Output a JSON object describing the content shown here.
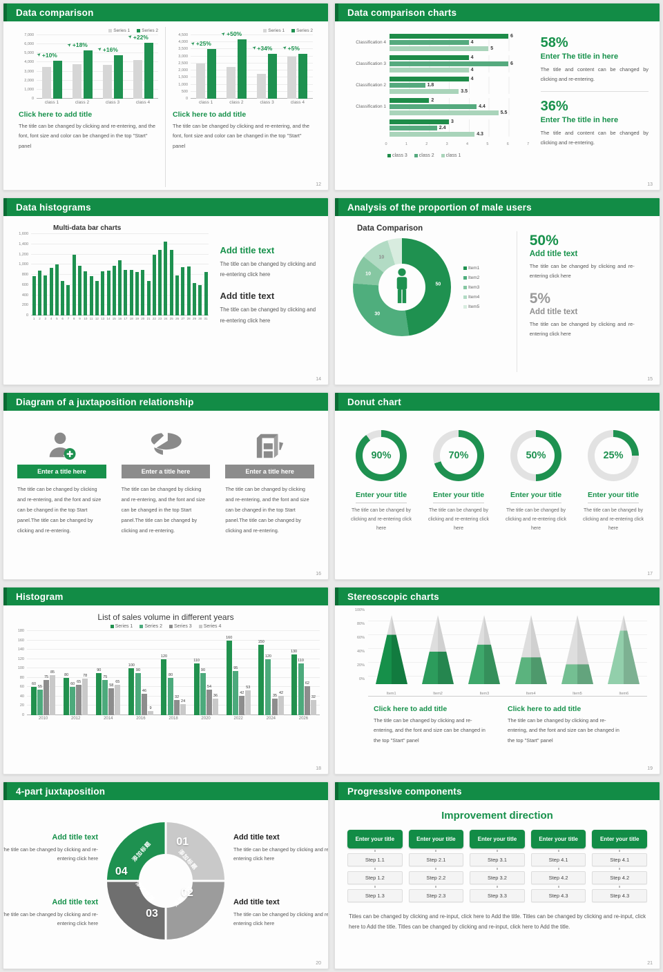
{
  "page": {
    "bg": "#e9e9e9",
    "accent_green": "#128c46",
    "bar_green": "#1e9150",
    "bar_gray": "#d6d6d6"
  },
  "slides": [
    {
      "title": "Data comparison",
      "page_no": "12",
      "panels": [
        {
          "block_title": "Click here to add title",
          "block_body": "The title can be changed by clicking and re-entering, and the font, font size and color can be changed in the top \"Start\" panel"
        },
        {
          "block_title": "Click here to add title",
          "block_body": "The title can be changed by clicking and re-entering, and the font, font size and color can be changed in the top \"Start\" panel"
        }
      ]
    },
    {
      "title": "Data comparison charts",
      "page_no": "13",
      "stats": [
        {
          "pct": "58%",
          "head": "Enter The title in here",
          "body": "The title and content can be changed by clicking and re-entering."
        },
        {
          "pct": "36%",
          "head": "Enter The title in here",
          "body": "The title and content can be changed by clicking and re-entering."
        }
      ]
    },
    {
      "title": "Data histograms",
      "page_no": "14",
      "blocks": [
        {
          "title": "Add title text",
          "body": "The title can be changed by clicking and re-entering click here"
        },
        {
          "title": "Add title text",
          "body": "The title can be changed by clicking and re-entering click here"
        }
      ]
    },
    {
      "title": "Analysis of the proportion of male users",
      "page_no": "15",
      "stats": [
        {
          "pct": "50%",
          "title": "Add title text",
          "body": "The title can be changed by clicking and re-entering click here"
        },
        {
          "pct": "5%",
          "title": "Add title text",
          "body": "The title can be changed by clicking and re-entering click here"
        }
      ]
    },
    {
      "title": "Diagram of a juxtaposition relationship",
      "page_no": "16",
      "columns": [
        {
          "icon": "person-add-icon",
          "title": "Enter a title here",
          "body": "The title can be changed by clicking and re-entering, and the font and size can be changed in the top Start panel.The title can be changed by clicking and re-entering."
        },
        {
          "icon": "pie-3d-icon",
          "title": "Enter a title here",
          "body": "The title can be changed by clicking and re-entering, and the font and size can be changed in the top Start panel.The title can be changed by clicking and re-entering."
        },
        {
          "icon": "building-icon",
          "title": "Enter a title here",
          "body": "The title can be changed by clicking and re-entering, and the font and size can be changed in the top Start panel.The title can be changed by clicking and re-entering."
        }
      ]
    },
    {
      "title": "Donut chart",
      "page_no": "17",
      "donuts": [
        {
          "pct": 90,
          "label": "90%",
          "title": "Enter your title",
          "body": "The title can be changed by clicking and re-entering click here"
        },
        {
          "pct": 70,
          "label": "70%",
          "title": "Enter your title",
          "body": "The title can be changed by clicking and re-entering click here"
        },
        {
          "pct": 50,
          "label": "50%",
          "title": "Enter your title",
          "body": "The title can be changed by clicking and re-entering click here"
        },
        {
          "pct": 25,
          "label": "25%",
          "title": "Enter your title",
          "body": "The title can be changed by clicking and re-entering click here"
        }
      ]
    },
    {
      "title": "Histogram",
      "page_no": "18"
    },
    {
      "title": "Stereoscopic charts",
      "page_no": "19",
      "blocks": [
        {
          "title": "Click here to add title",
          "body": "The title can be changed by clicking and re-entering, and the font and size can be changed in the top \"Start\" panel"
        },
        {
          "title": "Click here to add title",
          "body": "The title can be changed by clicking and re-entering, and the font and size can be changed in the top \"Start\" panel"
        }
      ]
    },
    {
      "title": "4-part juxtaposition",
      "page_no": "20",
      "ring": {
        "segments": [
          {
            "no": "01",
            "label": "添加标题",
            "color": "#c9c9c9"
          },
          {
            "no": "02",
            "label": "添加标题",
            "color": "#9c9c9c"
          },
          {
            "no": "03",
            "label": "添加标题",
            "color": "#6f6f6f"
          },
          {
            "no": "04",
            "label": "添加标题",
            "color": "#1e9150"
          }
        ]
      },
      "blocks": [
        {
          "pos": "tl",
          "style": "green",
          "title": "Add title text",
          "body": "The title can be changed by clicking and re-entering click here"
        },
        {
          "pos": "tr",
          "style": "dark",
          "title": "Add title text",
          "body": "The title can be changed by clicking and re-entering click here"
        },
        {
          "pos": "bl",
          "style": "green",
          "title": "Add title text",
          "body": "The title can be changed by clicking and re-entering click here"
        },
        {
          "pos": "br",
          "style": "dark",
          "title": "Add title text",
          "body": "The title can be changed by clicking and re-entering click here"
        }
      ]
    },
    {
      "title": "Progressive components",
      "page_no": "21",
      "heading": "Improvement direction",
      "columns": [
        {
          "title": "Enter your title",
          "steps": [
            "Step 1.1",
            "Step 1.2",
            "Step 1.3"
          ]
        },
        {
          "title": "Enter your title",
          "steps": [
            "Step 2.1",
            "Step 2.2",
            "Step 2.3"
          ]
        },
        {
          "title": "Enter your title",
          "steps": [
            "Step 3.1",
            "Step 3.2",
            "Step 3.3"
          ]
        },
        {
          "title": "Enter your title",
          "steps": [
            "Step 4.1",
            "Step 4.2",
            "Step 4.3"
          ]
        },
        {
          "title": "Enter your title",
          "steps": [
            "Step 4.1",
            "Step 4.2",
            "Step 4.3"
          ]
        }
      ],
      "footer": "Titles can be changed by clicking and re-input, click here to Add the title. Titles can be changed by clicking and re-input, click here to Add the title. Titles can be changed by clicking and re-input, click here to Add the title."
    }
  ],
  "chart_data": [
    {
      "slide": 12,
      "position": "left",
      "type": "bar",
      "categories": [
        "class 1",
        "class 2",
        "class 3",
        "class 4"
      ],
      "ylim": [
        0,
        7000
      ],
      "ystep": 1000,
      "grid": true,
      "legend_position": "top-right",
      "series": [
        {
          "name": "Series 1",
          "color": "#d6d6d6",
          "values": [
            3500,
            3800,
            3700,
            4300
          ]
        },
        {
          "name": "Series 2",
          "color": "#1e9150",
          "values": [
            4200,
            5300,
            4800,
            6200
          ]
        }
      ],
      "callouts": [
        "+10%",
        "+18%",
        "+16%",
        "+22%"
      ]
    },
    {
      "slide": 12,
      "position": "right",
      "type": "bar",
      "categories": [
        "class 1",
        "class 2",
        "class 3",
        "class 4"
      ],
      "ylim": [
        0,
        4500
      ],
      "ystep": 500,
      "grid": true,
      "legend_position": "top-right",
      "series": [
        {
          "name": "Series 1",
          "color": "#d6d6d6",
          "values": [
            2500,
            2250,
            1750,
            3000
          ]
        },
        {
          "name": "Series 2",
          "color": "#1e9150",
          "values": [
            3500,
            4200,
            3200,
            3200
          ]
        }
      ],
      "callouts": [
        "+25%",
        "+50%",
        "+34%",
        "+5%"
      ]
    },
    {
      "slide": 13,
      "type": "hbar",
      "xlim": [
        0,
        7
      ],
      "xticks": [
        0,
        1,
        2,
        3,
        4,
        5,
        6,
        7
      ],
      "legend": [
        "class 3",
        "class 2",
        "class 1"
      ],
      "colors": [
        "#1e8c49",
        "#55aa7e",
        "#a9d4ba"
      ],
      "groups": [
        {
          "label": "Classification 4",
          "values": [
            6,
            4,
            5
          ]
        },
        {
          "label": "Classification 3",
          "values": [
            4,
            6,
            4
          ]
        },
        {
          "label": "Classification 2",
          "values": [
            4,
            1.8,
            3.5
          ]
        },
        {
          "label": "Classification 1",
          "values": [
            2,
            4.4,
            5.5
          ]
        },
        {
          "label": "",
          "values": [
            3,
            2.4,
            4.3
          ]
        }
      ]
    },
    {
      "slide": 14,
      "type": "bar",
      "title": "Multi-data bar charts",
      "categories": [
        "1",
        "2",
        "3",
        "4",
        "5",
        "6",
        "7",
        "8",
        "9",
        "10",
        "11",
        "12",
        "13",
        "14",
        "15",
        "16",
        "17",
        "18",
        "19",
        "20",
        "21",
        "22",
        "23",
        "24",
        "25",
        "26",
        "27",
        "28",
        "29",
        "30",
        "31"
      ],
      "ylim": [
        0,
        1600
      ],
      "ystep": 200,
      "grid": true,
      "series": [
        {
          "name": "",
          "color": "#1e9150",
          "values": [
            770,
            880,
            790,
            940,
            1000,
            680,
            600,
            1190,
            970,
            870,
            770,
            680,
            870,
            880,
            980,
            1090,
            890,
            890,
            860,
            890,
            680,
            1200,
            1290,
            1450,
            1290,
            790,
            950,
            960,
            640,
            600,
            860
          ]
        }
      ]
    },
    {
      "slide": 15,
      "type": "pie",
      "title": "Data Comparison",
      "hole": true,
      "labels": [
        "Item1",
        "Item2",
        "Item3",
        "Item4",
        "Item5"
      ],
      "values": [
        50,
        30,
        10,
        10,
        5
      ],
      "shown_labels": [
        "50",
        "30",
        "10",
        "10",
        ""
      ],
      "colors": [
        "#1f9150",
        "#4fae7d",
        "#86c7a2",
        "#b2dbc4",
        "#d8ecdf"
      ]
    },
    {
      "slide": 17,
      "type": "donut-progress",
      "values": [
        90,
        70,
        50,
        25
      ],
      "track_color": "#e2e2e2",
      "fill_color": "#1e9150"
    },
    {
      "slide": 18,
      "type": "bar",
      "title": "List of sales volume in different years",
      "categories": [
        "2010",
        "2012",
        "2014",
        "2016",
        "2018",
        "2020",
        "2022",
        "2024",
        "2026"
      ],
      "ylim": [
        0,
        180
      ],
      "ystep": 20,
      "grid": true,
      "value_labels": true,
      "legend_position": "top-center",
      "series": [
        {
          "name": "Series 1",
          "color": "#21914e",
          "values": [
            60,
            80,
            90,
            100,
            120,
            110,
            160,
            150,
            130
          ]
        },
        {
          "name": "Series 2",
          "color": "#4caa7c",
          "values": [
            55,
            60,
            75,
            90,
            80,
            90,
            95,
            120,
            110
          ]
        },
        {
          "name": "Series 3",
          "color": "#8d8d8d",
          "values": [
            75,
            65,
            58,
            46,
            32,
            54,
            42,
            35,
            62
          ]
        },
        {
          "name": "Series 4",
          "color": "#c9c9c9",
          "values": [
            85,
            78,
            65,
            9,
            24,
            36,
            53,
            42,
            32
          ]
        }
      ]
    },
    {
      "slide": 19,
      "type": "cone",
      "categories": [
        "Item1",
        "Item2",
        "Item3",
        "Item4",
        "Item5",
        "Item6"
      ],
      "fill_percent": [
        72,
        48,
        58,
        40,
        30,
        78
      ],
      "ylim": [
        0,
        100
      ],
      "ystep": 20,
      "colors": [
        "#16904a",
        "#2c9c5c",
        "#3ea86b",
        "#5bb37e",
        "#74bf92",
        "#92cfab"
      ]
    }
  ]
}
